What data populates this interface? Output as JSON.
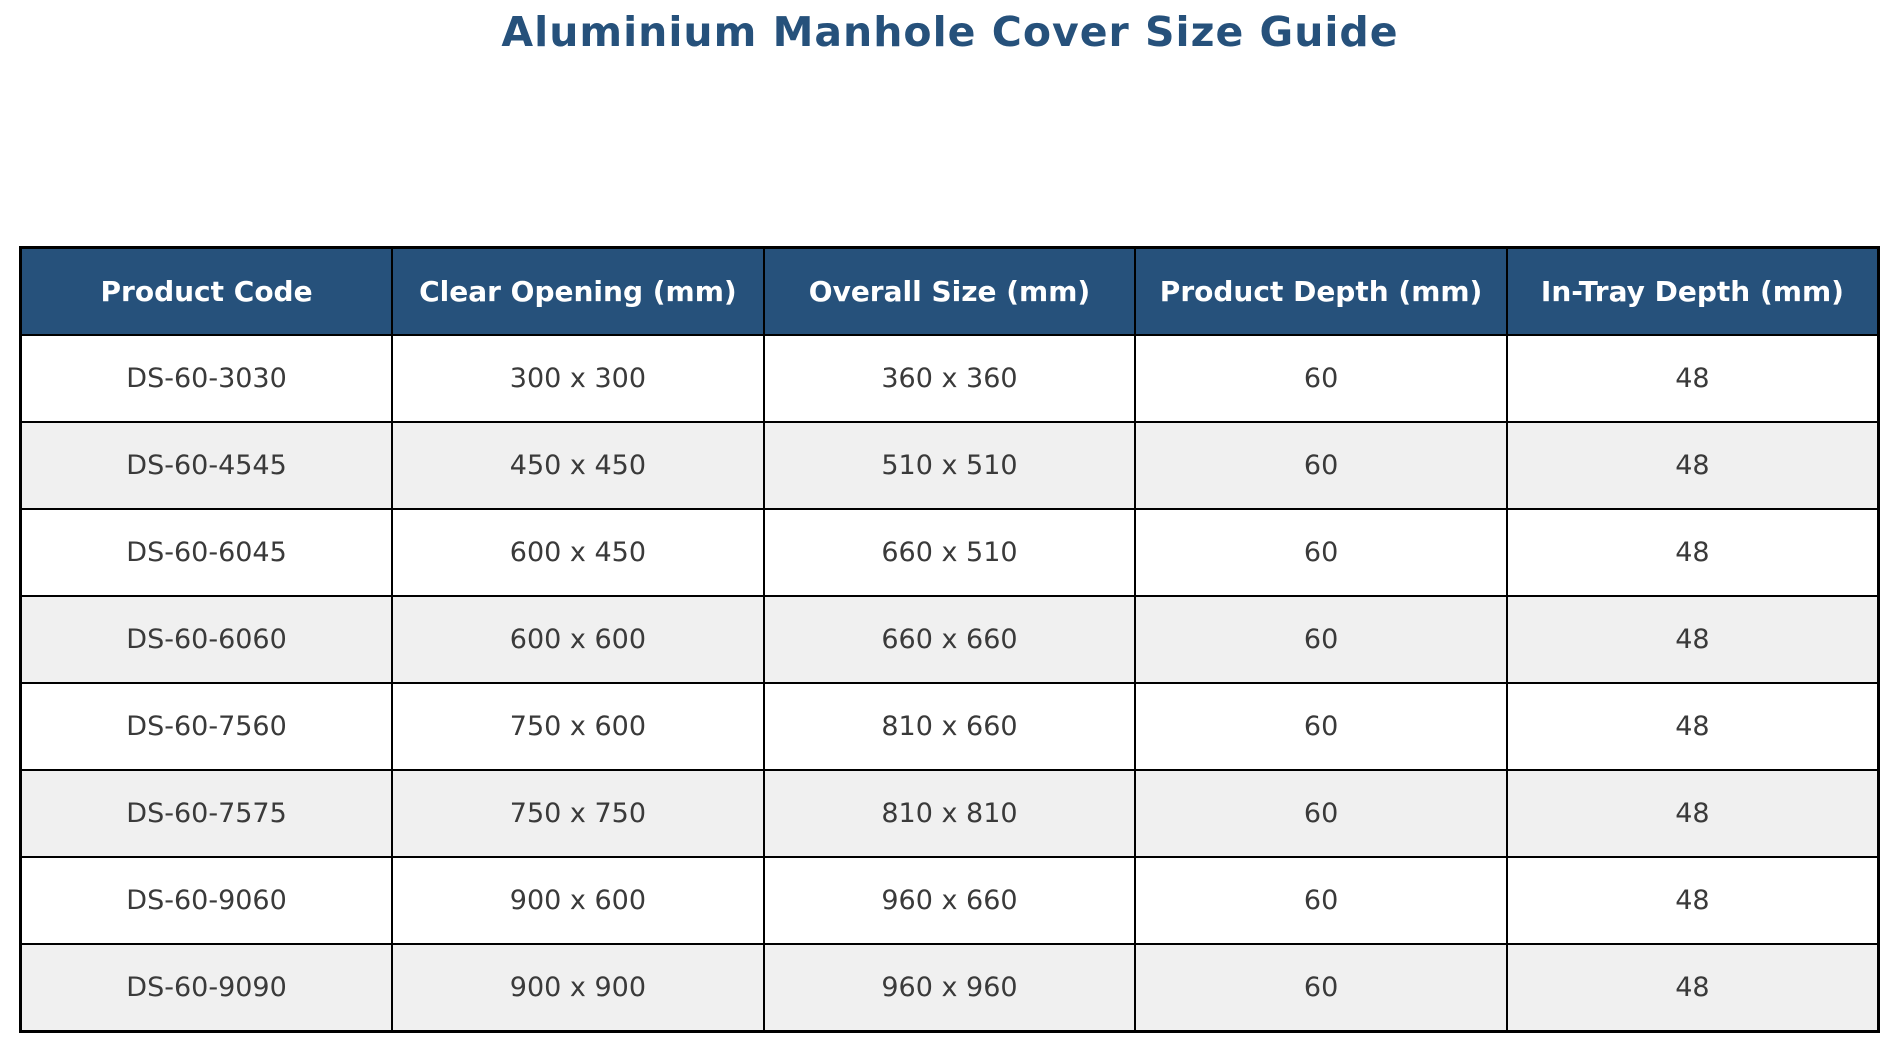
{
  "page_title": "Aluminium Manhole Cover Size Guide",
  "colors": {
    "title_text": "#26517b",
    "header_bg": "#26517b",
    "header_text": "#ffffff",
    "row_bg": "#ffffff",
    "row_alt_bg": "#f0f0f0",
    "grid_border": "#000000",
    "cell_text": "#3a3a3a",
    "page_bg": "#ffffff"
  },
  "chart_data": {
    "type": "table",
    "title": "Aluminium Manhole Cover Size Guide",
    "columns": [
      "Product Code",
      "Clear Opening (mm)",
      "Overall Size (mm)",
      "Product Depth (mm)",
      "In-Tray Depth (mm)"
    ],
    "rows": [
      [
        "DS-60-3030",
        "300 x 300",
        "360 x 360",
        "60",
        "48"
      ],
      [
        "DS-60-4545",
        "450 x 450",
        "510 x 510",
        "60",
        "48"
      ],
      [
        "DS-60-6045",
        "600 x 450",
        "660 x 510",
        "60",
        "48"
      ],
      [
        "DS-60-6060",
        "600 x 600",
        "660 x 660",
        "60",
        "48"
      ],
      [
        "DS-60-7560",
        "750 x 600",
        "810 x 660",
        "60",
        "48"
      ],
      [
        "DS-60-7575",
        "750 x 750",
        "810 x 810",
        "60",
        "48"
      ],
      [
        "DS-60-9060",
        "900 x 600",
        "960 x 660",
        "60",
        "48"
      ],
      [
        "DS-60-9090",
        "900 x 900",
        "960 x 960",
        "60",
        "48"
      ]
    ],
    "layout": {
      "alternating_row_shading": true,
      "grid": true,
      "header_position": "top"
    }
  }
}
